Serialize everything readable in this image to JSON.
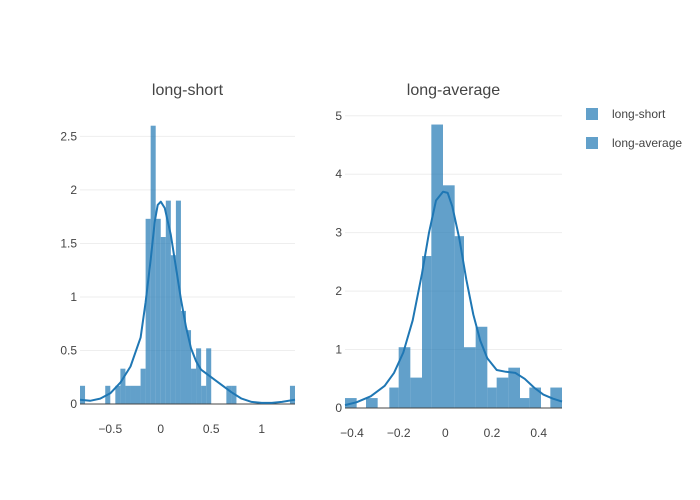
{
  "colors": {
    "bar": "#1f77b4",
    "grid": "#eeeeee",
    "axis": "#444444"
  },
  "legend": {
    "placement": "right",
    "items": [
      "long-short",
      "long-average"
    ]
  },
  "chart_data": [
    {
      "type": "histogram",
      "title": "long-short",
      "xlim": [
        -0.8,
        1.33
      ],
      "ylim": [
        0,
        2.7
      ],
      "xticks": [
        {
          "v": -0.5,
          "label": "−0.5"
        },
        {
          "v": 0,
          "label": "0"
        },
        {
          "v": 0.5,
          "label": "0.5"
        },
        {
          "v": 1,
          "label": "1"
        }
      ],
      "yticks": [
        {
          "v": 0,
          "label": "0"
        },
        {
          "v": 0.5,
          "label": "0.5"
        },
        {
          "v": 1,
          "label": "1"
        },
        {
          "v": 1.5,
          "label": "1.5"
        },
        {
          "v": 2,
          "label": "2"
        },
        {
          "v": 2.5,
          "label": "2.5"
        }
      ],
      "bins": [
        {
          "x0": -0.8,
          "x1": -0.75,
          "y": 0.17
        },
        {
          "x0": -0.55,
          "x1": -0.5,
          "y": 0.17
        },
        {
          "x0": -0.45,
          "x1": -0.4,
          "y": 0.17
        },
        {
          "x0": -0.4,
          "x1": -0.35,
          "y": 0.33
        },
        {
          "x0": -0.35,
          "x1": -0.3,
          "y": 0.17
        },
        {
          "x0": -0.3,
          "x1": -0.25,
          "y": 0.17
        },
        {
          "x0": -0.25,
          "x1": -0.2,
          "y": 0.17
        },
        {
          "x0": -0.2,
          "x1": -0.15,
          "y": 0.33
        },
        {
          "x0": -0.15,
          "x1": -0.1,
          "y": 1.73
        },
        {
          "x0": -0.1,
          "x1": -0.05,
          "y": 2.6
        },
        {
          "x0": -0.05,
          "x1": 0.0,
          "y": 1.73
        },
        {
          "x0": 0.0,
          "x1": 0.05,
          "y": 1.56
        },
        {
          "x0": 0.05,
          "x1": 0.1,
          "y": 1.9
        },
        {
          "x0": 0.1,
          "x1": 0.15,
          "y": 1.39
        },
        {
          "x0": 0.15,
          "x1": 0.2,
          "y": 1.9
        },
        {
          "x0": 0.2,
          "x1": 0.25,
          "y": 0.87
        },
        {
          "x0": 0.25,
          "x1": 0.3,
          "y": 0.69
        },
        {
          "x0": 0.3,
          "x1": 0.35,
          "y": 0.33
        },
        {
          "x0": 0.35,
          "x1": 0.4,
          "y": 0.52
        },
        {
          "x0": 0.4,
          "x1": 0.45,
          "y": 0.17
        },
        {
          "x0": 0.45,
          "x1": 0.5,
          "y": 0.52
        },
        {
          "x0": 0.65,
          "x1": 0.7,
          "y": 0.17
        },
        {
          "x0": 0.7,
          "x1": 0.75,
          "y": 0.17
        },
        {
          "x0": 1.28,
          "x1": 1.33,
          "y": 0.17
        }
      ],
      "kde": [
        [
          -0.8,
          0.04
        ],
        [
          -0.7,
          0.03
        ],
        [
          -0.6,
          0.05
        ],
        [
          -0.5,
          0.1
        ],
        [
          -0.4,
          0.2
        ],
        [
          -0.3,
          0.35
        ],
        [
          -0.2,
          0.62
        ],
        [
          -0.15,
          0.95
        ],
        [
          -0.1,
          1.35
        ],
        [
          -0.06,
          1.7
        ],
        [
          -0.03,
          1.86
        ],
        [
          0.0,
          1.89
        ],
        [
          0.04,
          1.83
        ],
        [
          0.1,
          1.58
        ],
        [
          0.15,
          1.28
        ],
        [
          0.2,
          0.98
        ],
        [
          0.25,
          0.72
        ],
        [
          0.3,
          0.52
        ],
        [
          0.35,
          0.4
        ],
        [
          0.4,
          0.32
        ],
        [
          0.5,
          0.25
        ],
        [
          0.6,
          0.18
        ],
        [
          0.7,
          0.11
        ],
        [
          0.8,
          0.05
        ],
        [
          0.9,
          0.02
        ],
        [
          1.0,
          0.01
        ],
        [
          1.1,
          0.01
        ],
        [
          1.2,
          0.02
        ],
        [
          1.33,
          0.04
        ]
      ]
    },
    {
      "type": "histogram",
      "title": "long-average",
      "xlim": [
        -0.43,
        0.5
      ],
      "ylim": [
        0,
        5.15
      ],
      "xticks": [
        {
          "v": -0.4,
          "label": "−0.4"
        },
        {
          "v": -0.2,
          "label": "−0.2"
        },
        {
          "v": 0,
          "label": "0"
        },
        {
          "v": 0.2,
          "label": "0.2"
        },
        {
          "v": 0.4,
          "label": "0.4"
        }
      ],
      "yticks": [
        {
          "v": 0,
          "label": "0"
        },
        {
          "v": 1,
          "label": "1"
        },
        {
          "v": 2,
          "label": "2"
        },
        {
          "v": 3,
          "label": "3"
        },
        {
          "v": 4,
          "label": "4"
        },
        {
          "v": 5,
          "label": "5"
        }
      ],
      "bins": [
        {
          "x0": -0.43,
          "x1": -0.38,
          "y": 0.17
        },
        {
          "x0": -0.34,
          "x1": -0.29,
          "y": 0.17
        },
        {
          "x0": -0.24,
          "x1": -0.2,
          "y": 0.35
        },
        {
          "x0": -0.2,
          "x1": -0.15,
          "y": 1.04
        },
        {
          "x0": -0.15,
          "x1": -0.1,
          "y": 0.52
        },
        {
          "x0": -0.1,
          "x1": -0.06,
          "y": 2.6
        },
        {
          "x0": -0.06,
          "x1": -0.01,
          "y": 4.85
        },
        {
          "x0": -0.01,
          "x1": 0.04,
          "y": 3.81
        },
        {
          "x0": 0.04,
          "x1": 0.08,
          "y": 2.94
        },
        {
          "x0": 0.08,
          "x1": 0.13,
          "y": 1.04
        },
        {
          "x0": 0.13,
          "x1": 0.18,
          "y": 1.39
        },
        {
          "x0": 0.18,
          "x1": 0.22,
          "y": 0.35
        },
        {
          "x0": 0.22,
          "x1": 0.27,
          "y": 0.52
        },
        {
          "x0": 0.27,
          "x1": 0.32,
          "y": 0.69
        },
        {
          "x0": 0.32,
          "x1": 0.36,
          "y": 0.17
        },
        {
          "x0": 0.36,
          "x1": 0.41,
          "y": 0.35
        },
        {
          "x0": 0.45,
          "x1": 0.5,
          "y": 0.35
        }
      ],
      "kde": [
        [
          -0.43,
          0.05
        ],
        [
          -0.38,
          0.1
        ],
        [
          -0.32,
          0.2
        ],
        [
          -0.26,
          0.38
        ],
        [
          -0.22,
          0.6
        ],
        [
          -0.18,
          0.95
        ],
        [
          -0.14,
          1.5
        ],
        [
          -0.1,
          2.3
        ],
        [
          -0.07,
          3.0
        ],
        [
          -0.04,
          3.55
        ],
        [
          -0.01,
          3.7
        ],
        [
          0.01,
          3.68
        ],
        [
          0.03,
          3.45
        ],
        [
          0.06,
          2.9
        ],
        [
          0.09,
          2.2
        ],
        [
          0.12,
          1.6
        ],
        [
          0.15,
          1.15
        ],
        [
          0.18,
          0.85
        ],
        [
          0.22,
          0.65
        ],
        [
          0.26,
          0.62
        ],
        [
          0.3,
          0.6
        ],
        [
          0.34,
          0.5
        ],
        [
          0.38,
          0.35
        ],
        [
          0.42,
          0.23
        ],
        [
          0.46,
          0.16
        ],
        [
          0.5,
          0.11
        ]
      ]
    }
  ]
}
